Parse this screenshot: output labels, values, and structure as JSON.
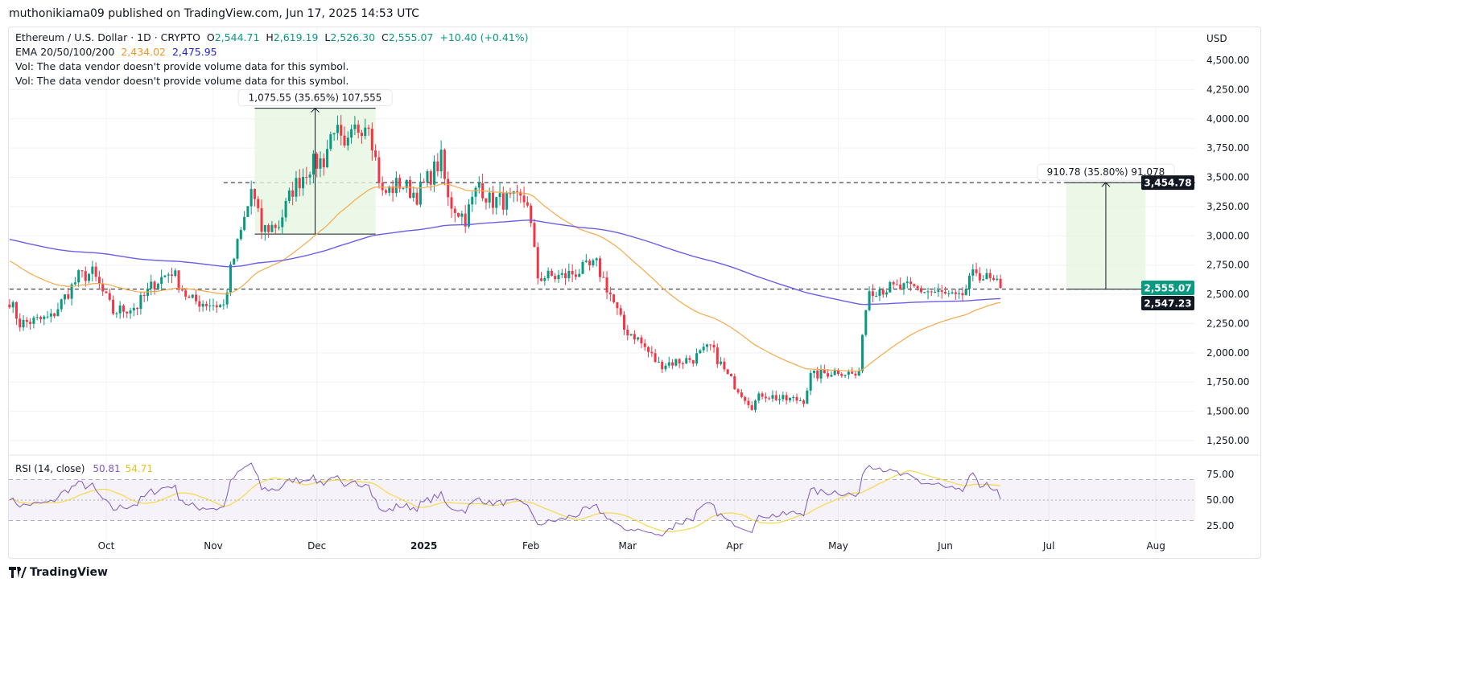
{
  "publisher_line": "muthonikiama09 published on TradingView.com, Jun 17, 2025 14:53 UTC",
  "legend": {
    "symbol": "Ethereum / U.S. Dollar · 1D · CRYPTO",
    "open_label": "O",
    "open": "2,544.71",
    "high_label": "H",
    "high": "2,619.19",
    "low_label": "L",
    "low": "2,526.30",
    "close_label": "C",
    "close": "2,555.07",
    "change": "+10.40 (+0.41%)",
    "ema_label": "EMA 20/50/100/200",
    "ema_50": "2,434.02",
    "ema_200": "2,475.95",
    "vol_line_1": "Vol: The data vendor doesn't provide volume data for this symbol.",
    "vol_line_2": "Vol: The data vendor doesn't provide volume data for this symbol."
  },
  "colors": {
    "up": "#089981",
    "down": "#f23645",
    "ema50": "#f7a94a",
    "ema200": "#6a5ee8",
    "rsi": "#7e57c2",
    "rsi_ma": "#f5d94a",
    "measure_fill": "#e6f5e1"
  },
  "footer_brand": "TradingView",
  "chart_data": {
    "type": "candlestick",
    "currency_label": "USD",
    "y_ticks": [
      "4,500.00",
      "4,250.00",
      "4,000.00",
      "3,750.00",
      "3,500.00",
      "3,250.00",
      "3,000.00",
      "2,750.00",
      "2,500.00",
      "2,250.00",
      "2,000.00",
      "1,750.00",
      "1,500.00",
      "1,250.00"
    ],
    "ylim": [
      1250,
      4500
    ],
    "x_ticks": [
      {
        "label": "Oct",
        "date": "2024-10-01",
        "bold": false
      },
      {
        "label": "Nov",
        "date": "2024-11-01",
        "bold": false
      },
      {
        "label": "Dec",
        "date": "2024-12-01",
        "bold": false
      },
      {
        "label": "2025",
        "date": "2025-01-01",
        "bold": true
      },
      {
        "label": "Feb",
        "date": "2025-02-01",
        "bold": false
      },
      {
        "label": "Mar",
        "date": "2025-03-01",
        "bold": false
      },
      {
        "label": "Apr",
        "date": "2025-04-01",
        "bold": false
      },
      {
        "label": "May",
        "date": "2025-05-01",
        "bold": false
      },
      {
        "label": "Jun",
        "date": "2025-06-01",
        "bold": false
      },
      {
        "label": "Jul",
        "date": "2025-07-01",
        "bold": false
      },
      {
        "label": "Aug",
        "date": "2025-08-01",
        "bold": false
      }
    ],
    "approx_close_path": [
      [
        "2024-09-03",
        2450
      ],
      [
        "2024-09-06",
        2250
      ],
      [
        "2024-09-15",
        2300
      ],
      [
        "2024-09-23",
        2650
      ],
      [
        "2024-09-27",
        2680
      ],
      [
        "2024-10-03",
        2350
      ],
      [
        "2024-10-10",
        2400
      ],
      [
        "2024-10-15",
        2600
      ],
      [
        "2024-10-20",
        2700
      ],
      [
        "2024-10-25",
        2450
      ],
      [
        "2024-11-04",
        2400
      ],
      [
        "2024-11-06",
        2700
      ],
      [
        "2024-11-11",
        3250
      ],
      [
        "2024-11-12",
        3400
      ],
      [
        "2024-11-15",
        3050
      ],
      [
        "2024-11-20",
        3100
      ],
      [
        "2024-11-24",
        3400
      ],
      [
        "2024-11-29",
        3600
      ],
      [
        "2024-12-03",
        3650
      ],
      [
        "2024-12-06",
        3950
      ],
      [
        "2024-12-09",
        3700
      ],
      [
        "2024-12-12",
        3900
      ],
      [
        "2024-12-16",
        4000
      ],
      [
        "2024-12-18",
        3650
      ],
      [
        "2024-12-20",
        3350
      ],
      [
        "2024-12-25",
        3450
      ],
      [
        "2024-12-30",
        3350
      ],
      [
        "2025-01-06",
        3650
      ],
      [
        "2025-01-08",
        3300
      ],
      [
        "2025-01-13",
        3150
      ],
      [
        "2025-01-17",
        3450
      ],
      [
        "2025-01-20",
        3300
      ],
      [
        "2025-01-26",
        3300
      ],
      [
        "2025-01-31",
        3300
      ],
      [
        "2025-02-02",
        2850
      ],
      [
        "2025-02-03",
        2650
      ],
      [
        "2025-02-10",
        2650
      ],
      [
        "2025-02-20",
        2750
      ],
      [
        "2025-02-24",
        2500
      ],
      [
        "2025-02-28",
        2200
      ],
      [
        "2025-03-03",
        2150
      ],
      [
        "2025-03-10",
        1900
      ],
      [
        "2025-03-20",
        1950
      ],
      [
        "2025-03-25",
        2050
      ],
      [
        "2025-03-30",
        1800
      ],
      [
        "2025-04-06",
        1550
      ],
      [
        "2025-04-09",
        1650
      ],
      [
        "2025-04-15",
        1600
      ],
      [
        "2025-04-21",
        1600
      ],
      [
        "2025-04-23",
        1800
      ],
      [
        "2025-05-01",
        1850
      ],
      [
        "2025-05-07",
        1800
      ],
      [
        "2025-05-08",
        2200
      ],
      [
        "2025-05-10",
        2550
      ],
      [
        "2025-05-15",
        2550
      ],
      [
        "2025-05-23",
        2550
      ],
      [
        "2025-05-31",
        2500
      ],
      [
        "2025-06-05",
        2450
      ],
      [
        "2025-06-10",
        2700
      ],
      [
        "2025-06-12",
        2650
      ],
      [
        "2025-06-17",
        2555.07
      ]
    ],
    "price_labels": [
      {
        "text": "3,454.78",
        "value": 3454.78,
        "style": "dark"
      },
      {
        "text": "2,555.07",
        "value": 2555.07,
        "style": "green"
      },
      {
        "text": "2,547.23",
        "value": 2547.23,
        "style": "dark"
      }
    ],
    "measurements": [
      {
        "text": "1,075.55 (35.65%) 107,555",
        "from_date": "2024-11-13",
        "to_date": "2024-12-18",
        "low": 3015,
        "high": 4090
      },
      {
        "text": "910.78 (35.80%) 91,078",
        "from_date": "2025-07-06",
        "to_date": "2025-07-29",
        "low": 2544,
        "high": 3454.78
      }
    ],
    "hlines": [
      {
        "value": 3454.78,
        "from_date": "2024-11-04"
      },
      {
        "value": 2544,
        "from_date": "2024-09-03"
      }
    ],
    "rsi": {
      "label": "RSI (14, close)",
      "value": "50.81",
      "ma_value": "54.71",
      "y_ticks": [
        "75.00",
        "50.00",
        "25.00"
      ],
      "upper": 70,
      "lower": 30
    }
  }
}
